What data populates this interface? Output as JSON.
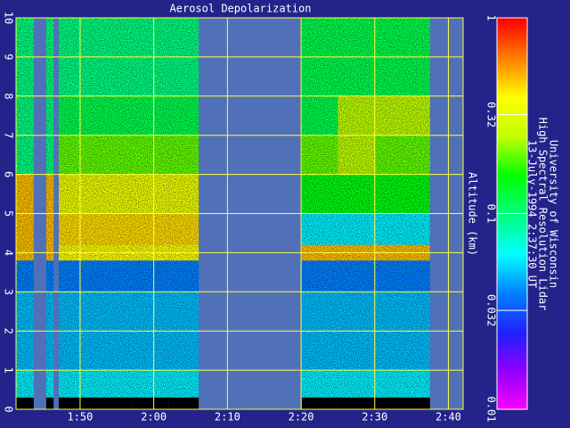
{
  "chart_data": {
    "type": "heatmap",
    "title": "Aerosol Depolarization",
    "ylabel": "Altitude (km)",
    "side_text": [
      "University of Wisconsin",
      "High Spectral Resolution Lidar",
      "13-July-1994  2:37:30 UT"
    ],
    "xlim": [
      101.3,
      162
    ],
    "xticks": [
      {
        "value": 110,
        "label": "1:50"
      },
      {
        "value": 120,
        "label": "2:00"
      },
      {
        "value": 130,
        "label": "2:10"
      },
      {
        "value": 140,
        "label": "2:20"
      },
      {
        "value": 150,
        "label": "2:30"
      },
      {
        "value": 160,
        "label": "2:40"
      }
    ],
    "ylim": [
      0,
      10
    ],
    "yticks": [
      0,
      1,
      2,
      3,
      4,
      5,
      6,
      7,
      8,
      9,
      10
    ],
    "grid": true,
    "x_edges": [
      101.3,
      103.7,
      105.4,
      106.4,
      107.1,
      112,
      117,
      122,
      126.1,
      140.1,
      145,
      150,
      157.5
    ],
    "y_edges": [
      0.3,
      1,
      2,
      3,
      3.8,
      4.2,
      5,
      6,
      7,
      8,
      10
    ],
    "z": [
      [
        0.06,
        null,
        0.06,
        null,
        0.06,
        0.06,
        0.06,
        0.06,
        null,
        0.06,
        0.06,
        0.06
      ],
      [
        0.05,
        null,
        0.05,
        null,
        0.05,
        0.05,
        0.05,
        0.05,
        null,
        0.05,
        0.05,
        0.05
      ],
      [
        0.05,
        null,
        0.05,
        null,
        0.05,
        0.05,
        0.05,
        0.05,
        null,
        0.05,
        0.05,
        0.05
      ],
      [
        0.04,
        null,
        0.04,
        null,
        0.04,
        0.04,
        0.04,
        0.04,
        null,
        0.04,
        0.04,
        0.04
      ],
      [
        0.5,
        null,
        0.5,
        null,
        0.4,
        0.4,
        0.4,
        0.4,
        null,
        0.5,
        0.5,
        0.5
      ],
      [
        0.5,
        null,
        0.5,
        null,
        0.45,
        0.45,
        0.45,
        0.45,
        null,
        0.06,
        0.06,
        0.06
      ],
      [
        0.5,
        null,
        0.5,
        null,
        0.35,
        0.35,
        0.35,
        0.35,
        null,
        0.15,
        0.15,
        0.15
      ],
      [
        0.1,
        null,
        0.1,
        null,
        0.2,
        0.2,
        0.2,
        0.2,
        null,
        0.2,
        0.25,
        0.2
      ],
      [
        0.1,
        null,
        0.1,
        null,
        0.12,
        0.12,
        0.12,
        0.12,
        null,
        0.12,
        0.25,
        0.25
      ],
      [
        0.1,
        null,
        0.1,
        null,
        0.1,
        0.1,
        0.1,
        0.1,
        null,
        0.12,
        0.12,
        0.12
      ]
    ],
    "clim": [
      0.01,
      1
    ],
    "cticks": [
      1,
      0.32,
      0.1,
      0.032,
      0.01
    ],
    "colormap": [
      "#ff00ff",
      "#9000ff",
      "#2020ff",
      "#0080ff",
      "#00ffff",
      "#00ff80",
      "#00ff00",
      "#c0ff00",
      "#ffff00",
      "#ff8000",
      "#ff0000"
    ],
    "log_color": true
  }
}
